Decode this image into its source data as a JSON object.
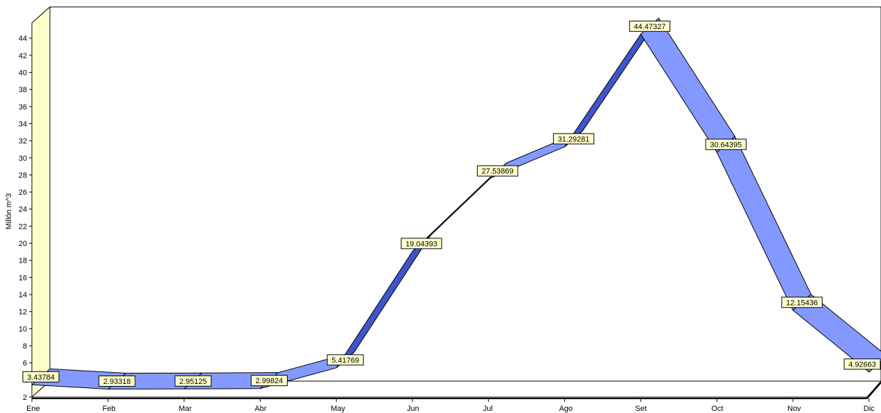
{
  "chart_data": {
    "type": "area",
    "title": "",
    "xlabel": "",
    "ylabel": "Millón m^3",
    "categories": [
      "Ene",
      "Feb",
      "Mar",
      "Abr",
      "May",
      "Jun",
      "Jul",
      "Ago",
      "Set",
      "Oct",
      "Nov",
      "Dic"
    ],
    "series": [
      {
        "name": "",
        "values": [
          3.43784,
          2.93318,
          2.95125,
          2.99824,
          5.41769,
          19.04393,
          27.53869,
          31.29281,
          44.47327,
          30.64395,
          12.15436,
          4.92663
        ],
        "labels": [
          "3.43784",
          "2.93318",
          "2.95125",
          "2.99824",
          "5.41769",
          "19.04393",
          "27.53869",
          "31.29281",
          "44.47327",
          "30.64395",
          "12.15436",
          "4.92663"
        ]
      }
    ],
    "ylim": [
      2,
      45
    ],
    "yticks": [
      "2",
      "4",
      "6",
      "8",
      "10",
      "12",
      "14",
      "16",
      "18",
      "20",
      "22",
      "24",
      "26",
      "28",
      "30",
      "32",
      "34",
      "36",
      "38",
      "40",
      "42",
      "44"
    ],
    "grid": false,
    "legend": "none",
    "colors": {
      "ribbon_front": "#8499ff",
      "ribbon_top": "#3f55cc",
      "back_wall": "#ffffff",
      "side_wall": "#ffffcc",
      "label_bg": "#ffffcc",
      "outline": "#000000"
    }
  }
}
